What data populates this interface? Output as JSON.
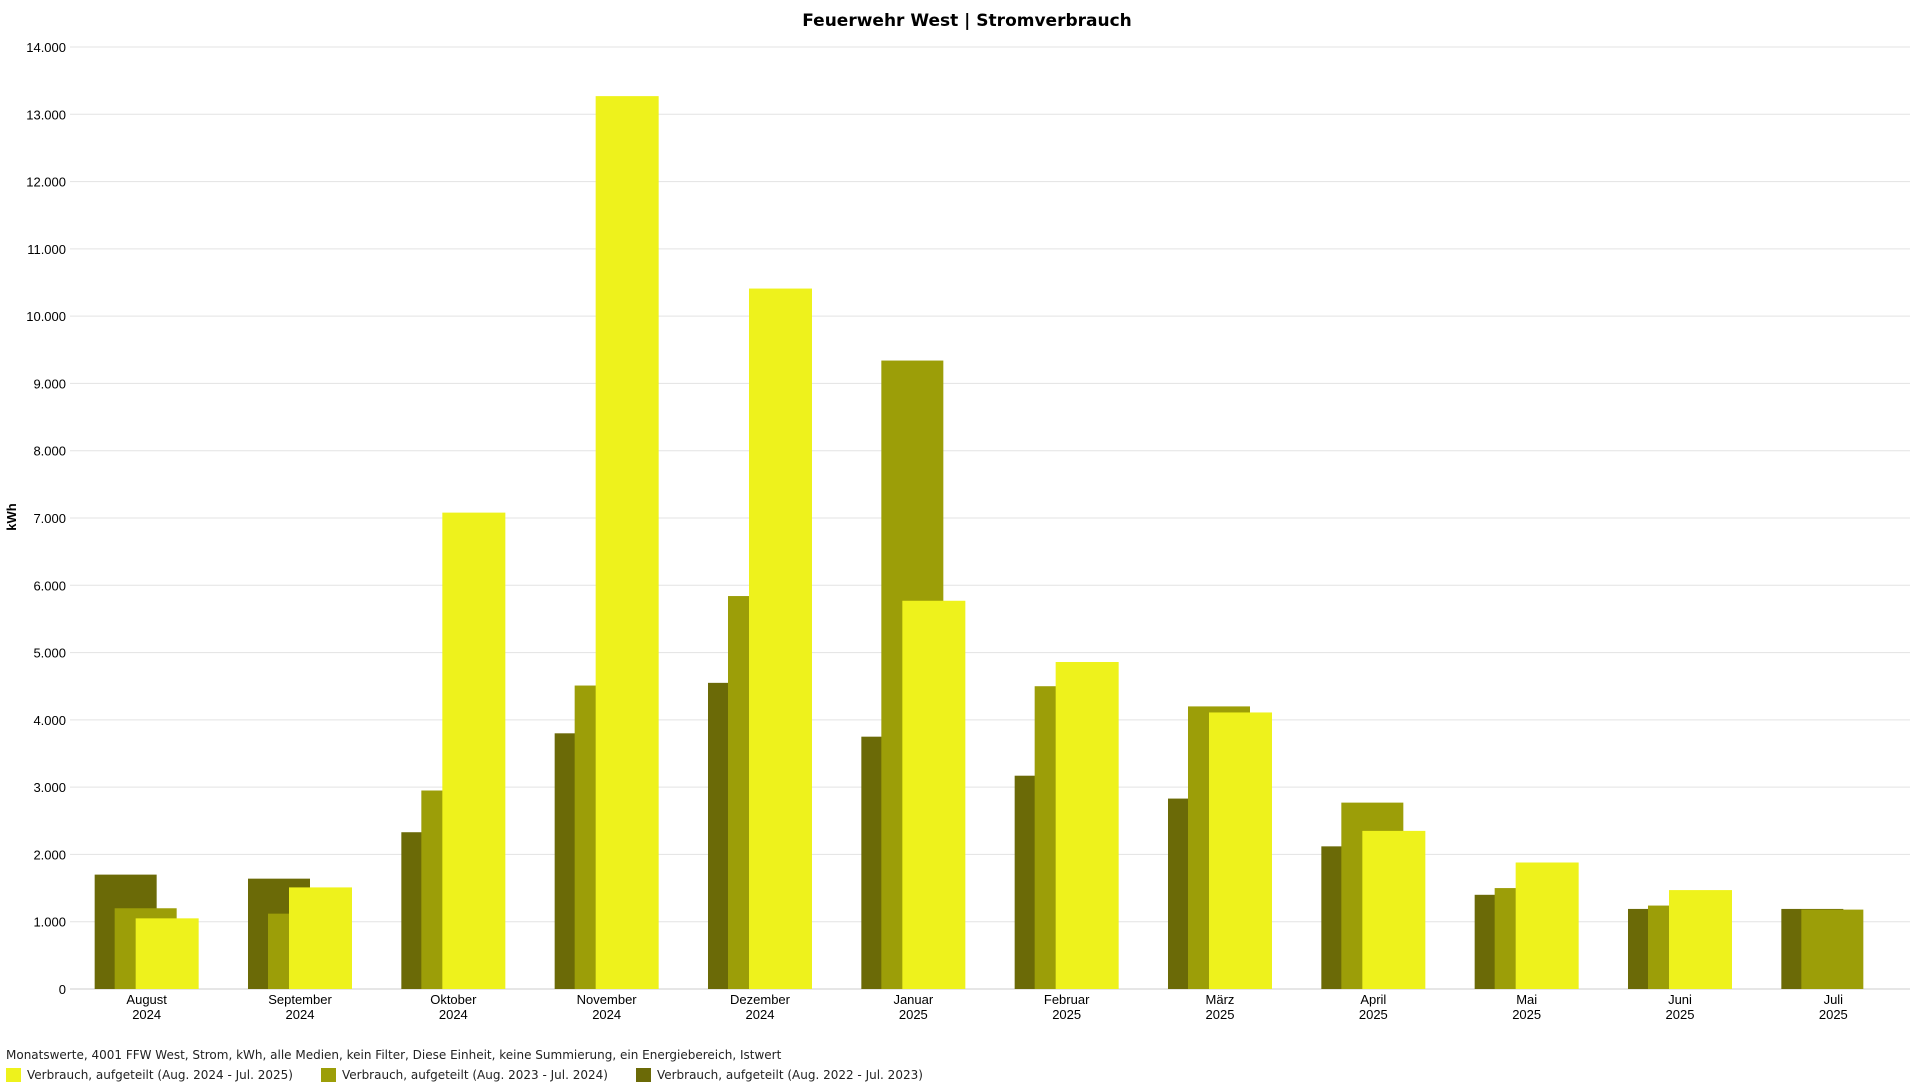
{
  "chart_data": {
    "type": "bar",
    "title": "Feuerwehr West | Stromverbrauch",
    "ylabel": "kWh",
    "ylim": [
      0,
      14000
    ],
    "yticks": [
      "0",
      "1.000",
      "2.000",
      "3.000",
      "4.000",
      "5.000",
      "6.000",
      "7.000",
      "8.000",
      "9.000",
      "10.000",
      "11.000",
      "12.000",
      "13.000",
      "14.000"
    ],
    "categories": [
      {
        "month": "August",
        "year": "2024"
      },
      {
        "month": "September",
        "year": "2024"
      },
      {
        "month": "Oktober",
        "year": "2024"
      },
      {
        "month": "November",
        "year": "2024"
      },
      {
        "month": "Dezember",
        "year": "2024"
      },
      {
        "month": "Januar",
        "year": "2025"
      },
      {
        "month": "Februar",
        "year": "2025"
      },
      {
        "month": "März",
        "year": "2025"
      },
      {
        "month": "April",
        "year": "2025"
      },
      {
        "month": "Mai",
        "year": "2025"
      },
      {
        "month": "Juni",
        "year": "2025"
      },
      {
        "month": "Juli",
        "year": "2025"
      }
    ],
    "series": [
      {
        "name": "Verbrauch, aufgeteilt (Aug. 2022 - Jul. 2023)",
        "color": "#6b6a07",
        "values": [
          1700,
          1640,
          2330,
          3800,
          4550,
          3750,
          3170,
          2830,
          2120,
          1400,
          1190,
          1190
        ]
      },
      {
        "name": "Verbrauch, aufgeteilt (Aug. 2023 - Jul. 2024)",
        "color": "#9c9e08",
        "values": [
          1200,
          1120,
          2950,
          4510,
          5840,
          9340,
          4500,
          4200,
          2770,
          1500,
          1240,
          1180
        ]
      },
      {
        "name": "Verbrauch, aufgeteilt (Aug. 2024 - Jul. 2025)",
        "color": "#eef21c",
        "values": [
          1050,
          1510,
          7080,
          13270,
          10410,
          5770,
          4860,
          4110,
          2350,
          1880,
          1470,
          null
        ]
      }
    ],
    "grid": true,
    "legend_position": "bottom-left",
    "subtitle": "Monatswerte, 4001 FFW West, Strom, kWh, alle Medien, kein Filter, Diese Einheit, keine Summierung, ein Energiebereich, Istwert",
    "legend_order": [
      2,
      1,
      0
    ]
  }
}
